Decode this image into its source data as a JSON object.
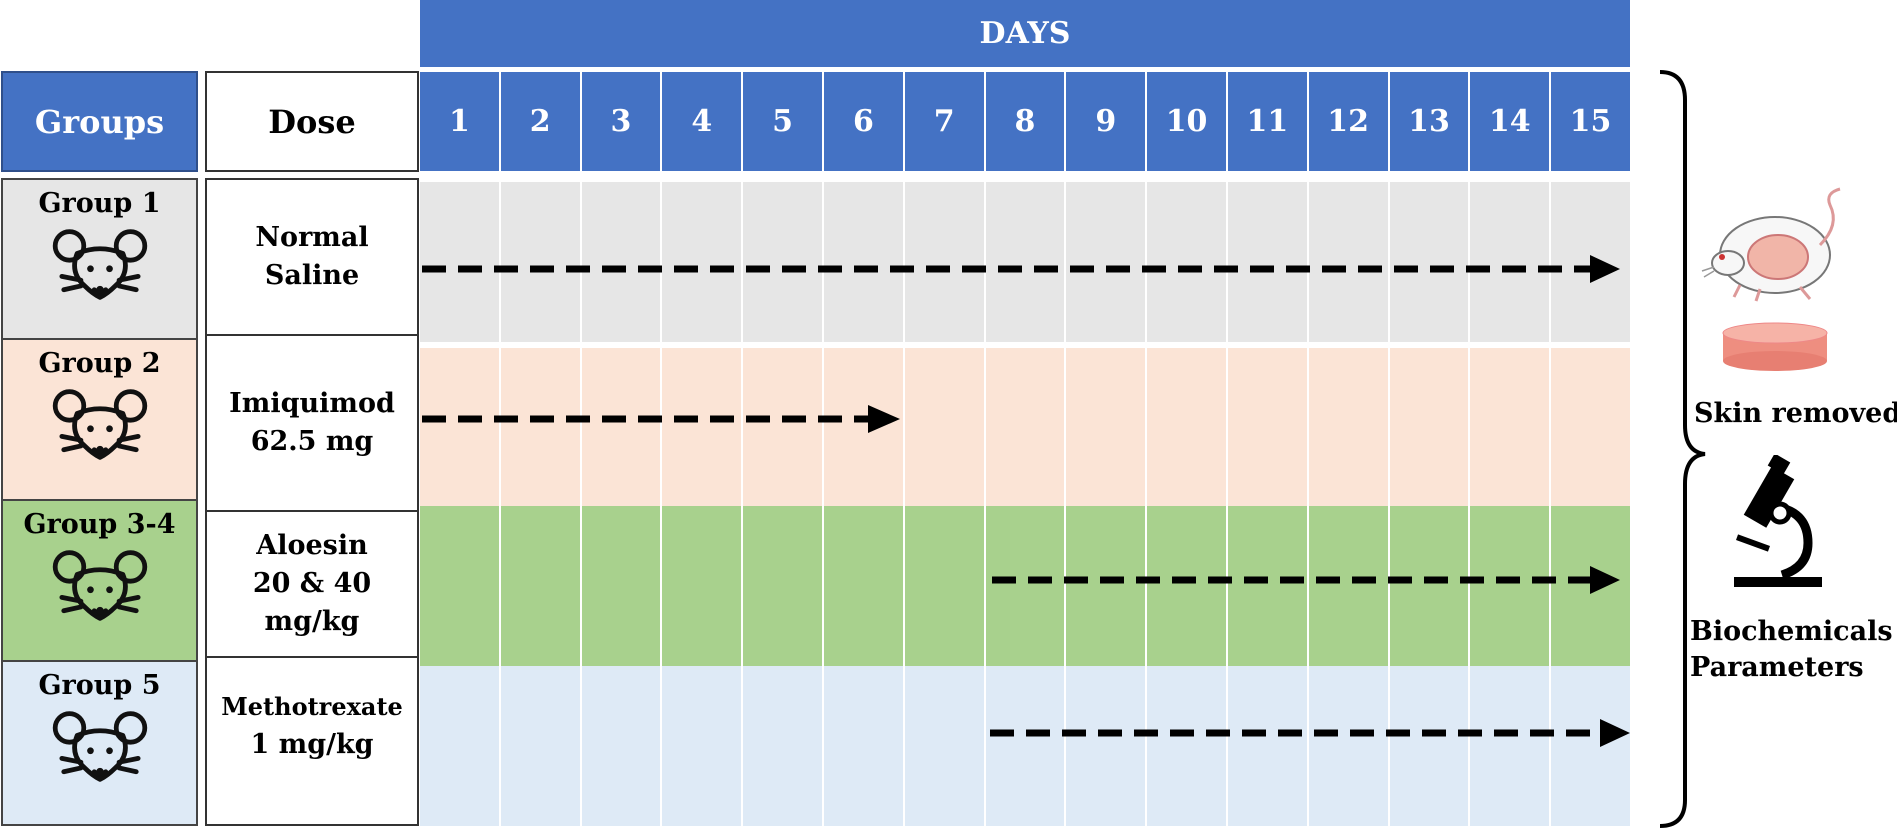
{
  "header": {
    "days_title": "DAYS",
    "groups_label": "Groups",
    "dose_label": "Dose"
  },
  "days": [
    "1",
    "2",
    "3",
    "4",
    "5",
    "6",
    "7",
    "8",
    "9",
    "10",
    "11",
    "12",
    "13",
    "14",
    "15"
  ],
  "groups": [
    {
      "label": "Group 1",
      "dose_lines": [
        "Normal",
        "Saline"
      ],
      "color": "#e6e6e6",
      "arrow_start_day": 1,
      "arrow_end_day": 15
    },
    {
      "label": "Group 2",
      "dose_lines": [
        "Imiquimod",
        "62.5 mg"
      ],
      "color": "#fbe4d6",
      "arrow_start_day": 1,
      "arrow_end_day": 6
    },
    {
      "label": "Group 3-4",
      "dose_lines": [
        "Aloesin",
        "20 & 40",
        "mg/kg"
      ],
      "color": "#a8d18d",
      "arrow_start_day": 8,
      "arrow_end_day": 15
    },
    {
      "label": "Group 5",
      "dose_lines": [
        "Methotrexate",
        "1 mg/kg"
      ],
      "color": "#deeaf6",
      "arrow_start_day": 8,
      "arrow_end_day": 15
    }
  ],
  "outcomes": {
    "skin_label": "Skin removed",
    "biochem_lines": [
      "Biochemicals",
      "Parameters"
    ]
  },
  "colors": {
    "header_blue": "#4472c4",
    "arrow": "#000000"
  },
  "icons": {
    "group_icon": "mouse-face-icon",
    "skin_icon": "mouse-and-skin-sample-icon",
    "biochem_icon": "microscope-icon"
  }
}
